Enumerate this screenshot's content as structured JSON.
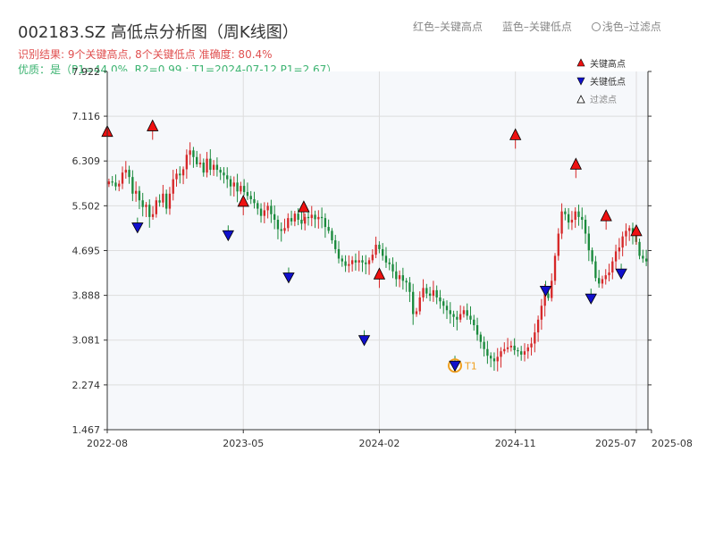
{
  "page": {
    "title": "002183.SZ 高低点分析图（周K线图）",
    "legend_top": {
      "high": "红色–关键高点",
      "low": "蓝色–关键低点",
      "filtered": "浅色–过滤点"
    },
    "info_result": "识别结果: 9个关键高点, 8个关键低点  准确度: 80.4%",
    "info_quality": "优质：是（P1=44.0%, R2=0.99 ; T1=2024-07-12 P1=2.67）"
  },
  "chart_data": {
    "type": "candlestick",
    "title": "002183.SZ 高低点分析图（周K线图）",
    "ylim": [
      1.467,
      7.922
    ],
    "y_ticks": [
      "1.467",
      "2.274",
      "3.081",
      "3.888",
      "4.695",
      "5.502",
      "6.309",
      "7.116",
      "7.922"
    ],
    "x_ticks": [
      "2022-08",
      "2023-05",
      "2024-02",
      "2024-11",
      "2025-07",
      "2025-08"
    ],
    "x_range_weeks": [
      0,
      155
    ],
    "grid": true,
    "legend": {
      "position": "top-right",
      "entries": [
        "关键高点",
        "关键低点",
        "过滤点"
      ]
    },
    "colors": {
      "up": "#d62728",
      "down": "#1a8a3c",
      "key_high": "#ee1111",
      "key_low": "#1010cc",
      "marker_circle": "#f0a020",
      "t1_text": "#f0a020",
      "grid": "#dddddd",
      "plot_bg": "#f6f8fb"
    },
    "close": [
      5.94,
      5.92,
      5.85,
      5.9,
      6.1,
      6.15,
      6.02,
      5.72,
      5.77,
      5.6,
      5.48,
      5.52,
      5.3,
      5.35,
      5.6,
      5.56,
      5.72,
      5.45,
      5.72,
      5.98,
      6.08,
      6.05,
      6.16,
      6.42,
      6.5,
      6.38,
      6.25,
      6.28,
      6.1,
      6.35,
      6.15,
      6.24,
      6.15,
      6.1,
      6.05,
      5.98,
      5.85,
      5.92,
      5.76,
      5.86,
      5.75,
      5.68,
      5.62,
      5.55,
      5.45,
      5.32,
      5.42,
      5.5,
      5.35,
      5.25,
      5.08,
      5.05,
      5.1,
      5.28,
      5.22,
      5.36,
      5.25,
      5.18,
      5.3,
      5.28,
      5.34,
      5.26,
      5.3,
      5.28,
      5.12,
      5.05,
      4.88,
      4.72,
      4.55,
      4.5,
      4.42,
      4.45,
      4.52,
      4.48,
      4.52,
      4.48,
      4.45,
      4.52,
      4.62,
      4.8,
      4.72,
      4.6,
      4.48,
      4.45,
      4.32,
      4.18,
      4.25,
      4.15,
      4.12,
      3.95,
      3.55,
      3.6,
      3.85,
      4.02,
      3.92,
      3.88,
      3.98,
      3.85,
      3.78,
      3.7,
      3.62,
      3.55,
      3.5,
      3.45,
      3.55,
      3.62,
      3.52,
      3.45,
      3.35,
      3.18,
      3.05,
      2.92,
      2.8,
      2.75,
      2.7,
      2.78,
      2.88,
      2.92,
      2.95,
      2.98,
      2.9,
      2.88,
      2.82,
      2.88,
      2.95,
      3.02,
      3.22,
      3.45,
      3.7,
      3.92,
      3.84,
      4.15,
      4.6,
      5.0,
      5.4,
      5.35,
      5.2,
      5.25,
      5.4,
      5.3,
      5.25,
      5.0,
      4.7,
      4.5,
      4.2,
      4.1,
      4.18,
      4.25,
      4.3,
      4.5,
      4.68,
      4.75,
      4.95,
      5.05,
      5.1,
      5.0,
      4.85,
      4.6,
      4.55,
      4.5
    ],
    "key_highs": [
      {
        "date": "2022-08",
        "value": 6.72
      },
      {
        "date": "2022-11",
        "value": 6.82
      },
      {
        "date": "2023-05",
        "value": 5.46
      },
      {
        "date": "2023-09",
        "value": 5.36
      },
      {
        "date": "2024-02",
        "value": 4.15
      },
      {
        "date": "2024-11",
        "value": 6.66
      },
      {
        "date": "2025-03",
        "value": 6.13
      },
      {
        "date": "2025-05",
        "value": 5.2
      },
      {
        "date": "2025-07",
        "value": 4.93
      }
    ],
    "key_lows": [
      {
        "date": "2022-10",
        "value": 5.16
      },
      {
        "date": "2023-04",
        "value": 5.02
      },
      {
        "date": "2023-08",
        "value": 4.26
      },
      {
        "date": "2024-01",
        "value": 3.13
      },
      {
        "date": "2024-07",
        "value": 2.67
      },
      {
        "date": "2025-01",
        "value": 4.02
      },
      {
        "date": "2025-04",
        "value": 3.88
      },
      {
        "date": "2025-06",
        "value": 4.33
      }
    ],
    "t1_label": "T1",
    "t1_index": 4
  }
}
